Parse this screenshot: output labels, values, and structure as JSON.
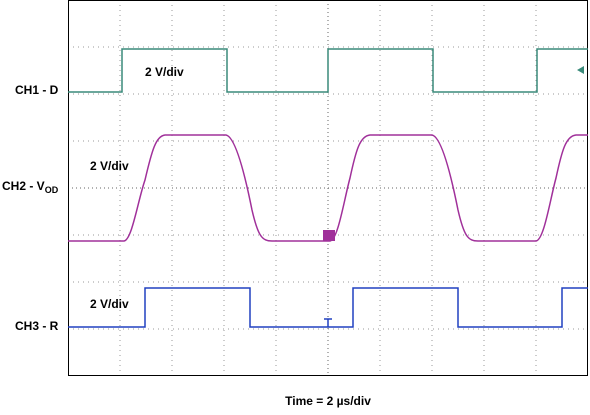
{
  "channels": [
    {
      "label": "CH1 - D",
      "scale": "2 V/div"
    },
    {
      "label": "CH2 - V",
      "label_sub": "OD",
      "scale": "2 V/div"
    },
    {
      "label": "CH3 - R",
      "scale": "2 V/div"
    }
  ],
  "x_label_prefix": "Time = 2 ",
  "x_label_unit": "µs/div"
}
